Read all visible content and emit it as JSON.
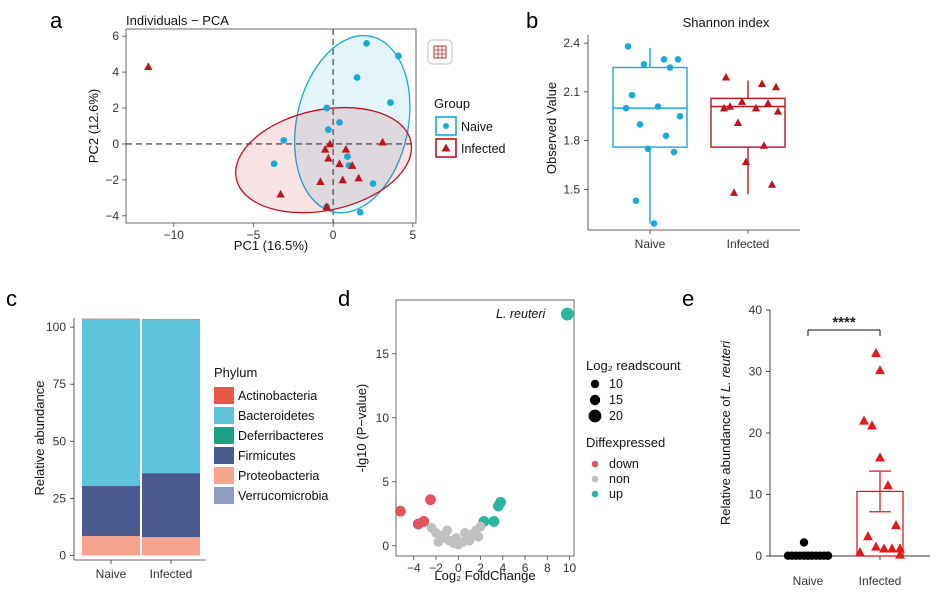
{
  "chart_data": [
    {
      "panel": "a",
      "type": "scatter",
      "title": "Individuals − PCA",
      "xlabel": "PC1 (16.5%)",
      "ylabel": "PC2 (12.6%)",
      "xlim": [
        -13,
        5.2
      ],
      "ylim": [
        -4.4,
        6.4
      ],
      "xticks": [
        -10,
        -5,
        0,
        5
      ],
      "yticks": [
        -4,
        -2,
        0,
        2,
        4,
        6
      ],
      "legend_title": "Group",
      "colors": {
        "Naive": "#1ba9d8",
        "Infected": "#c1121f"
      },
      "series": [
        {
          "name": "Naive",
          "marker": "circle",
          "points": [
            [
              2.1,
              5.6
            ],
            [
              4.1,
              4.9
            ],
            [
              1.5,
              3.7
            ],
            [
              3.6,
              2.3
            ],
            [
              -0.4,
              2.0
            ],
            [
              0.4,
              1.2
            ],
            [
              -0.3,
              0.8
            ],
            [
              -3.1,
              0.2
            ],
            [
              0.9,
              -0.7
            ],
            [
              -3.7,
              -1.1
            ],
            [
              1.0,
              -1.2
            ],
            [
              2.5,
              -2.2
            ],
            [
              -0.4,
              -3.5
            ],
            [
              1.7,
              -3.8
            ]
          ]
        },
        {
          "name": "Infected",
          "marker": "triangle",
          "points": [
            [
              -11.6,
              4.3
            ],
            [
              3.1,
              0.1
            ],
            [
              -0.2,
              0.0
            ],
            [
              -0.5,
              -0.3
            ],
            [
              0.8,
              -0.3
            ],
            [
              -0.3,
              -0.8
            ],
            [
              0.4,
              -1.1
            ],
            [
              1.2,
              -1.2
            ],
            [
              1.6,
              -1.9
            ],
            [
              -0.8,
              -2.1
            ],
            [
              0.6,
              -2.0
            ],
            [
              -3.3,
              -2.8
            ],
            [
              -0.4,
              -3.5
            ]
          ]
        }
      ],
      "ellipses": [
        {
          "group": "Naive",
          "center": [
            1.2,
            1.1
          ],
          "semi_axes": [
            3.5,
            5.0
          ],
          "angle_deg": 12
        },
        {
          "group": "Infected",
          "center": [
            -0.6,
            -0.9
          ],
          "semi_axes": [
            5.6,
            2.8
          ],
          "angle_deg": -12
        }
      ]
    },
    {
      "panel": "b",
      "type": "box",
      "title": "Shannon index",
      "ylabel": "Observed Value",
      "categories": [
        "Naive",
        "Infected"
      ],
      "ylim": [
        1.25,
        2.45
      ],
      "yticks": [
        1.5,
        1.8,
        2.1,
        2.4
      ],
      "colors": {
        "Naive": "#1ba9d8",
        "Infected": "#c1121f"
      },
      "boxes": [
        {
          "name": "Naive",
          "min": 1.29,
          "q1": 1.76,
          "median": 2.0,
          "q3": 2.25,
          "max": 2.37,
          "points": [
            2.38,
            2.3,
            2.3,
            2.27,
            2.25,
            2.08,
            2.01,
            2.0,
            1.95,
            1.9,
            1.83,
            1.75,
            1.73,
            1.43,
            1.29
          ]
        },
        {
          "name": "Infected",
          "min": 1.47,
          "q1": 1.76,
          "median": 2.01,
          "q3": 2.06,
          "max": 2.17,
          "points": [
            2.19,
            2.15,
            2.13,
            2.04,
            2.03,
            2.01,
            2.0,
            2.0,
            1.98,
            1.91,
            1.77,
            1.67,
            1.53,
            1.48
          ]
        }
      ]
    },
    {
      "panel": "c",
      "type": "stacked_bar",
      "ylabel": "Relative abundance",
      "categories": [
        "Naive",
        "Infected"
      ],
      "ylim": [
        -2,
        104
      ],
      "yticks": [
        0,
        25,
        50,
        75,
        100
      ],
      "legend_title": "Phylum",
      "series": [
        {
          "name": "Actinobacteria",
          "color": "#e8564a",
          "values": [
            0.1,
            0.3
          ]
        },
        {
          "name": "Bacteroidetes",
          "color": "#5ec4db",
          "values": [
            73.0,
            67.0
          ]
        },
        {
          "name": "Deferribacteres",
          "color": "#1e9f88",
          "values": [
            0.1,
            0.1
          ]
        },
        {
          "name": "Firmicutes",
          "color": "#4a5a8e",
          "values": [
            22.0,
            28.0
          ]
        },
        {
          "name": "Proteobacteria",
          "color": "#f4a48f",
          "values": [
            8.5,
            8.0
          ]
        },
        {
          "name": "Verrucomicrobia",
          "color": "#8f9cc2",
          "values": [
            0.1,
            0.1
          ]
        }
      ]
    },
    {
      "panel": "d",
      "type": "scatter",
      "subtype": "volcano",
      "xlabel": "Log₂ FoldChange",
      "ylabel": "-lg10 (P−value)",
      "xlim": [
        -5.6,
        10.4
      ],
      "ylim": [
        -0.8,
        19.2
      ],
      "xticks": [
        -4,
        -2,
        0,
        2,
        4,
        6,
        8,
        10
      ],
      "yticks": [
        0,
        5,
        10,
        15
      ],
      "annotation": "L. reuteri",
      "size_legend_title": "Log₂ readscount",
      "size_legend": [
        "10",
        "15",
        "20"
      ],
      "color_legend_title": "Diffexpressed",
      "color_legend": [
        {
          "name": "down",
          "color": "#e05560"
        },
        {
          "name": "non",
          "color": "#c0c0c0"
        },
        {
          "name": "up",
          "color": "#2bb5a0"
        }
      ],
      "points": [
        {
          "x": 9.8,
          "y": 18.1,
          "cls": "up",
          "size": 20
        },
        {
          "x": 3.8,
          "y": 3.4,
          "cls": "up",
          "size": 15
        },
        {
          "x": 3.6,
          "y": 3.1,
          "cls": "up",
          "size": 15
        },
        {
          "x": 3.2,
          "y": 1.9,
          "cls": "up",
          "size": 15
        },
        {
          "x": 2.3,
          "y": 1.9,
          "cls": "up",
          "size": 15
        },
        {
          "x": -5.2,
          "y": 2.7,
          "cls": "down",
          "size": 15
        },
        {
          "x": -2.5,
          "y": 3.6,
          "cls": "down",
          "size": 15
        },
        {
          "x": -3.1,
          "y": 1.9,
          "cls": "down",
          "size": 15
        },
        {
          "x": -3.6,
          "y": 1.7,
          "cls": "down",
          "size": 15
        },
        {
          "x": -2.4,
          "y": 1.4,
          "cls": "non",
          "size": 14
        },
        {
          "x": -2.0,
          "y": 1.0,
          "cls": "non",
          "size": 14
        },
        {
          "x": -1.6,
          "y": 0.8,
          "cls": "non",
          "size": 14
        },
        {
          "x": -1.2,
          "y": 0.6,
          "cls": "non",
          "size": 14
        },
        {
          "x": -0.8,
          "y": 0.4,
          "cls": "non",
          "size": 14
        },
        {
          "x": -0.4,
          "y": 0.2,
          "cls": "non",
          "size": 14
        },
        {
          "x": 0.0,
          "y": 0.1,
          "cls": "non",
          "size": 14
        },
        {
          "x": 0.4,
          "y": 0.3,
          "cls": "non",
          "size": 14
        },
        {
          "x": 0.8,
          "y": 0.6,
          "cls": "non",
          "size": 14
        },
        {
          "x": 1.2,
          "y": 0.9,
          "cls": "non",
          "size": 14
        },
        {
          "x": 1.6,
          "y": 1.2,
          "cls": "non",
          "size": 14
        },
        {
          "x": 2.0,
          "y": 1.5,
          "cls": "non",
          "size": 14
        },
        {
          "x": 1.8,
          "y": 0.7,
          "cls": "non",
          "size": 14
        },
        {
          "x": -1.0,
          "y": 1.2,
          "cls": "non",
          "size": 14
        },
        {
          "x": -1.8,
          "y": 0.3,
          "cls": "non",
          "size": 14
        },
        {
          "x": 0.6,
          "y": 1.0,
          "cls": "non",
          "size": 14
        },
        {
          "x": 1.0,
          "y": 0.4,
          "cls": "non",
          "size": 14
        },
        {
          "x": -0.2,
          "y": 0.6,
          "cls": "non",
          "size": 14
        }
      ]
    },
    {
      "panel": "e",
      "type": "bar",
      "ylabel_prefix": "Relative abundance of ",
      "ylabel_ital": "L. reuteri",
      "categories": [
        "Naive",
        "Infected"
      ],
      "ylim": [
        0,
        40
      ],
      "yticks": [
        0,
        10,
        20,
        30,
        40
      ],
      "significance": "****",
      "bars": [
        {
          "name": "Naive",
          "mean": 0.15,
          "sem": 0.1,
          "color": "#000000",
          "points": [
            2.2,
            0.05,
            0.05,
            0.05,
            0.05,
            0.05,
            0.05,
            0.05,
            0.05,
            0.05,
            0.05,
            0.05,
            0.05,
            0.05
          ]
        },
        {
          "name": "Infected",
          "mean": 10.5,
          "sem": 3.3,
          "color": "#e31a1c",
          "points": [
            33.0,
            30.2,
            22.0,
            21.2,
            16.0,
            11.5,
            5.0,
            3.2,
            1.5,
            1.2,
            1.2,
            1.2,
            0.6,
            0.2
          ]
        }
      ]
    }
  ],
  "panels": {
    "a": "a",
    "b": "b",
    "c": "c",
    "d": "d",
    "e": "e"
  }
}
